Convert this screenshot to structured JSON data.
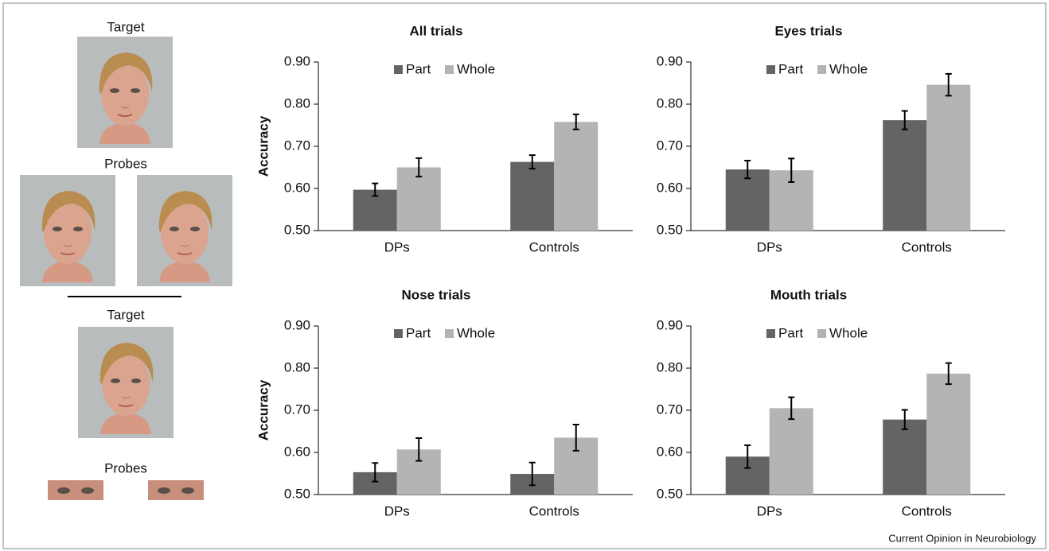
{
  "figure_labels": {
    "target_top": "Target",
    "probes_top": "Probes",
    "target_bottom": "Target",
    "probes_bottom": "Probes",
    "credit": "Current Opinion in Neurobiology"
  },
  "chart_data": [
    {
      "type": "bar",
      "title": "All trials",
      "y_label": "Accuracy",
      "categories": [
        "DPs",
        "Controls"
      ],
      "series": [
        {
          "name": "Part",
          "color": "#646464",
          "values": [
            0.597,
            0.663
          ],
          "errors": [
            0.015,
            0.016
          ]
        },
        {
          "name": "Whole",
          "color": "#b3b4b6",
          "values": [
            0.65,
            0.758
          ],
          "errors": [
            0.022,
            0.018
          ]
        }
      ],
      "ylim": [
        0.5,
        0.9
      ],
      "yticks": [
        {
          "value": 0.5,
          "label": "0.50"
        },
        {
          "value": 0.6,
          "label": "0.60"
        },
        {
          "value": 0.7,
          "label": "0.70"
        },
        {
          "value": 0.8,
          "label": "0.80"
        },
        {
          "value": 0.9,
          "label": "0.90"
        }
      ]
    },
    {
      "type": "bar",
      "title": "Eyes trials",
      "categories": [
        "DPs",
        "Controls"
      ],
      "series": [
        {
          "name": "Part",
          "color": "#646464",
          "values": [
            0.645,
            0.762
          ],
          "errors": [
            0.021,
            0.022
          ]
        },
        {
          "name": "Whole",
          "color": "#b3b4b6",
          "values": [
            0.643,
            0.846
          ],
          "errors": [
            0.028,
            0.026
          ]
        }
      ],
      "ylim": [
        0.5,
        0.9
      ],
      "yticks": [
        {
          "value": 0.5,
          "label": "0.50"
        },
        {
          "value": 0.6,
          "label": "0.60"
        },
        {
          "value": 0.7,
          "label": "0.70"
        },
        {
          "value": 0.8,
          "label": "0.80"
        },
        {
          "value": 0.9,
          "label": "0.90"
        }
      ]
    },
    {
      "type": "bar",
      "title": "Nose trials",
      "y_label": "Accuracy",
      "categories": [
        "DPs",
        "Controls"
      ],
      "series": [
        {
          "name": "Part",
          "color": "#646464",
          "values": [
            0.553,
            0.549
          ],
          "errors": [
            0.022,
            0.027
          ]
        },
        {
          "name": "Whole",
          "color": "#b3b4b6",
          "values": [
            0.607,
            0.635
          ],
          "errors": [
            0.027,
            0.031
          ]
        }
      ],
      "ylim": [
        0.5,
        0.9
      ],
      "yticks": [
        {
          "value": 0.5,
          "label": "0.50"
        },
        {
          "value": 0.6,
          "label": "0.60"
        },
        {
          "value": 0.7,
          "label": "0.70"
        },
        {
          "value": 0.8,
          "label": "0.80"
        },
        {
          "value": 0.9,
          "label": "0.90"
        }
      ]
    },
    {
      "type": "bar",
      "title": "Mouth trials",
      "categories": [
        "DPs",
        "Controls"
      ],
      "series": [
        {
          "name": "Part",
          "color": "#646464",
          "values": [
            0.59,
            0.678
          ],
          "errors": [
            0.027,
            0.023
          ]
        },
        {
          "name": "Whole",
          "color": "#b3b4b6",
          "values": [
            0.705,
            0.787
          ],
          "errors": [
            0.026,
            0.025
          ]
        }
      ],
      "ylim": [
        0.5,
        0.9
      ],
      "yticks": [
        {
          "value": 0.5,
          "label": "0.50"
        },
        {
          "value": 0.6,
          "label": "0.60"
        },
        {
          "value": 0.7,
          "label": "0.70"
        },
        {
          "value": 0.8,
          "label": "0.80"
        },
        {
          "value": 0.9,
          "label": "0.90"
        }
      ]
    }
  ]
}
